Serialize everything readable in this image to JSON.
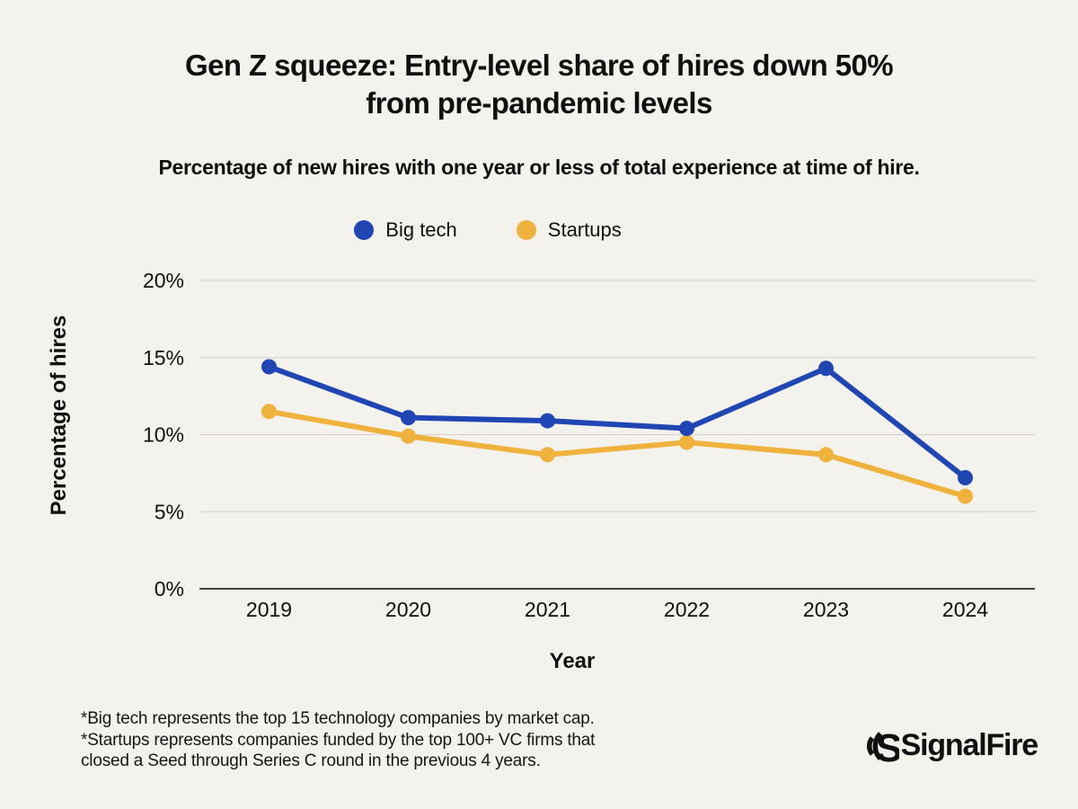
{
  "page": {
    "background": "#F4F2EC",
    "text_color": "#101010"
  },
  "title": {
    "line1": "Gen Z squeeze: Entry-level share of hires down 50%",
    "line2": "from pre-pandemic levels"
  },
  "subtitle": "Percentage of new hires with one year or less of total experience at time of hire.",
  "chart_data": {
    "type": "line",
    "categories": [
      "2019",
      "2020",
      "2021",
      "2022",
      "2023",
      "2024"
    ],
    "series": [
      {
        "name": "Big tech",
        "color": "#2046B4",
        "values": [
          14.4,
          11.1,
          10.9,
          10.4,
          14.3,
          7.2
        ]
      },
      {
        "name": "Startups",
        "color": "#EFB33D",
        "values": [
          11.5,
          9.9,
          8.7,
          9.5,
          8.7,
          6.0
        ]
      }
    ],
    "xlabel": "Year",
    "ylabel": "Percentage of hires",
    "ylim": [
      0,
      20
    ],
    "yticks": [
      0,
      5,
      10,
      15,
      20
    ],
    "ytick_suffix": "%",
    "grid": true,
    "legend_position": "top",
    "colors": {
      "grid": "#D9D6D0",
      "axis": "#45433F",
      "tick_text": "#101010"
    }
  },
  "footnote": {
    "lines": [
      "*Big tech represents the top 15 technology companies by market cap.",
      "*Startups represents companies funded by the top 100+ VC firms that",
      "closed a Seed through Series C round in the previous 4 years."
    ]
  },
  "logo": {
    "text": "SignalFire"
  }
}
